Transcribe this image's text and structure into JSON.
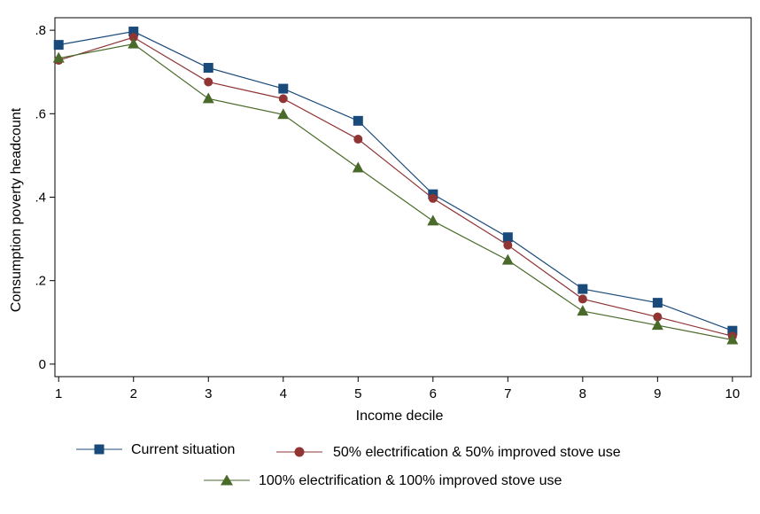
{
  "chart_data": {
    "type": "line",
    "xlabel": "Income decile",
    "ylabel": "Consumption poverty headcount",
    "x": [
      1,
      2,
      3,
      4,
      5,
      6,
      7,
      8,
      9,
      10
    ],
    "xlim": [
      0.95,
      10.25
    ],
    "ylim": [
      -0.03,
      0.83
    ],
    "xticks": [
      1,
      2,
      3,
      4,
      5,
      6,
      7,
      8,
      9,
      10
    ],
    "yticks": [
      0,
      0.2,
      0.4,
      0.6,
      0.8
    ],
    "ytick_labels": [
      "0",
      ".2",
      ".4",
      ".6",
      ".8"
    ],
    "grid": false,
    "legend_position": "bottom",
    "series": [
      {
        "name": "Current situation",
        "color": "#1a4a7a",
        "marker": "square",
        "values": [
          0.765,
          0.797,
          0.71,
          0.66,
          0.583,
          0.407,
          0.304,
          0.18,
          0.147,
          0.08
        ]
      },
      {
        "name": "50% electrification & 50% improved stove use",
        "color": "#903434",
        "marker": "circle",
        "values": [
          0.728,
          0.783,
          0.676,
          0.636,
          0.539,
          0.397,
          0.285,
          0.156,
          0.113,
          0.067
        ]
      },
      {
        "name": "100% electrification & 100% improved stove use",
        "color": "#4a6a2a",
        "marker": "triangle",
        "values": [
          0.733,
          0.767,
          0.636,
          0.598,
          0.47,
          0.343,
          0.249,
          0.127,
          0.093,
          0.058
        ]
      }
    ]
  }
}
